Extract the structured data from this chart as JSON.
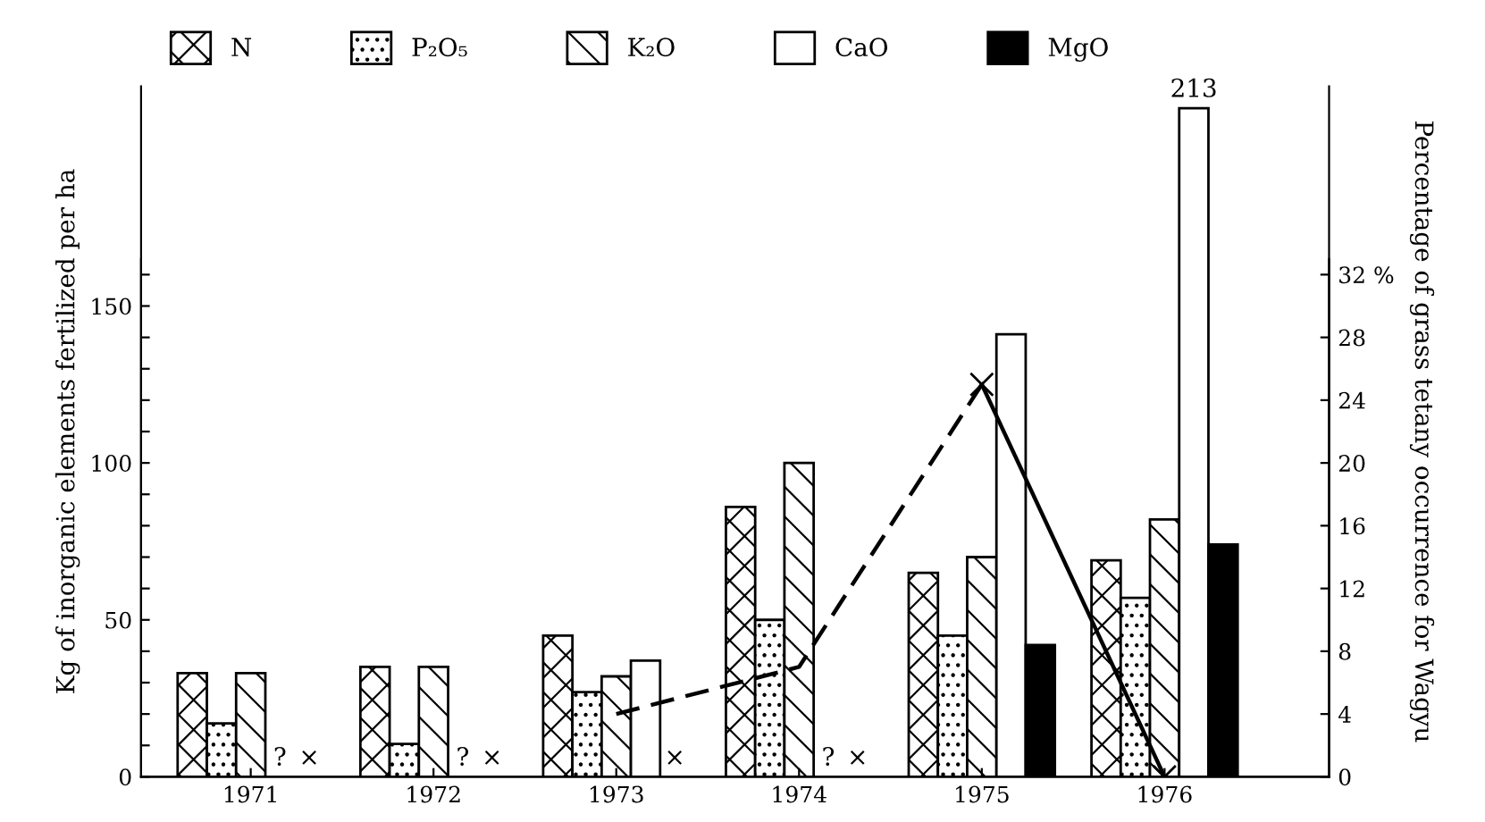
{
  "chart_data": {
    "type": "bar",
    "categories": [
      "1971",
      "1972",
      "1973",
      "1974",
      "1975",
      "1976"
    ],
    "ylabel": "Kg of inorganic elements fertilized per ha",
    "y2label": "Percentage of grass tetany occurrence for Wagyu",
    "ylim": [
      0,
      220
    ],
    "yticks": [
      0,
      {
        "value": 10,
        "label": null
      },
      {
        "value": 20,
        "label": null
      },
      {
        "value": 30,
        "label": null
      },
      {
        "value": 40,
        "label": null
      },
      50,
      {
        "value": 60,
        "label": null
      },
      {
        "value": 70,
        "label": null
      },
      {
        "value": 80,
        "label": null
      },
      {
        "value": 90,
        "label": null
      },
      100,
      {
        "value": 110,
        "label": null
      },
      {
        "value": 120,
        "label": null
      },
      {
        "value": 130,
        "label": null
      },
      {
        "value": 140,
        "label": null
      },
      150,
      {
        "value": 160,
        "label": null
      }
    ],
    "y2lim": [
      0,
      44
    ],
    "y2ticks": [
      0,
      4,
      8,
      12,
      16,
      20,
      24,
      28,
      {
        "value": 32,
        "label": "32 %"
      }
    ],
    "legend": "top",
    "grid": false,
    "series": [
      {
        "name": "N",
        "color": "#000000",
        "values": [
          33,
          35,
          45,
          86,
          65,
          69
        ]
      },
      {
        "name": "P₂O₅",
        "color": "#000000",
        "values": [
          17,
          10.5,
          27,
          50,
          45,
          57
        ]
      },
      {
        "name": "K₂O",
        "color": "#000000",
        "values": [
          33,
          35,
          32,
          100,
          70,
          82
        ]
      },
      {
        "name": "CaO",
        "color": "#ffffff",
        "values": [
          null,
          null,
          37,
          null,
          141,
          213
        ],
        "value_labels": [
          "?",
          "?",
          null,
          "?",
          null,
          "213"
        ]
      },
      {
        "name": "MgO",
        "color": "#000000",
        "values": [
          null,
          null,
          null,
          null,
          42,
          74
        ],
        "value_labels": [
          "×",
          "×",
          "×",
          "×",
          null,
          null
        ]
      },
      {
        "type": "line",
        "axis": "y2",
        "color": "#000000",
        "line_style": "dashed",
        "marker": "none",
        "values": [
          null,
          null,
          4,
          7,
          25,
          null
        ]
      },
      {
        "type": "line",
        "axis": "y2",
        "color": "#000000",
        "line_style": "solid",
        "marker": "cross",
        "values": [
          null,
          null,
          null,
          null,
          25,
          0
        ]
      }
    ]
  }
}
